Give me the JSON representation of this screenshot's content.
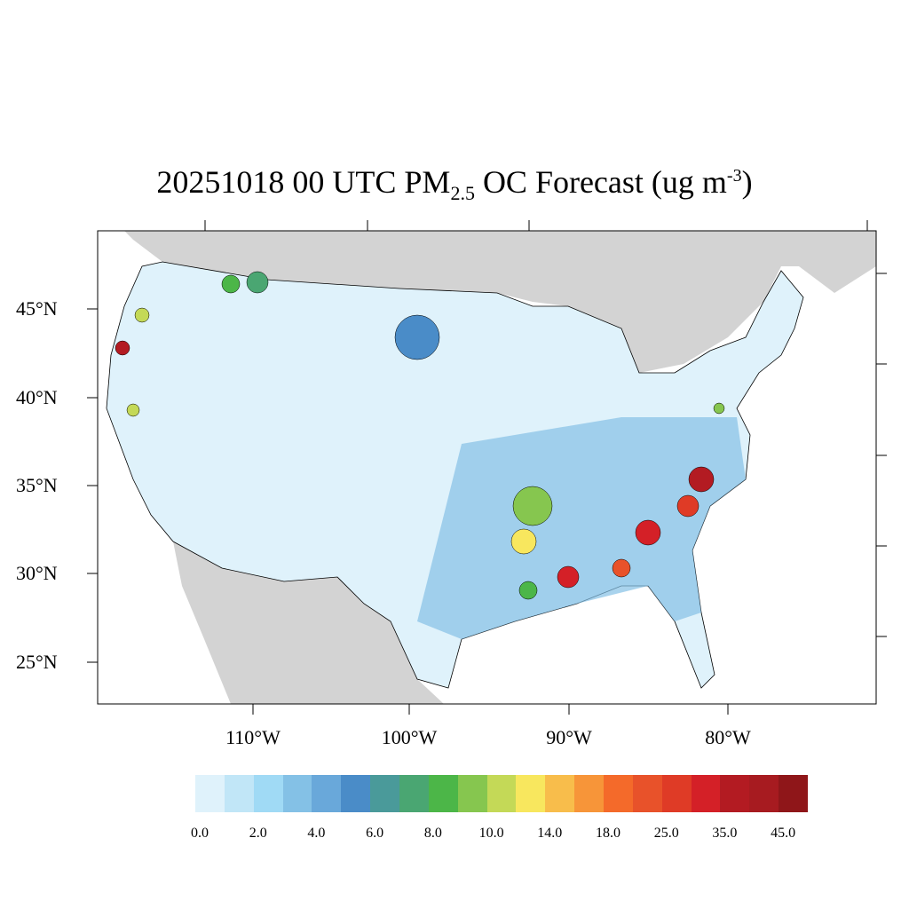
{
  "title": {
    "main": "20251018 00 UTC PM",
    "sub": "2.5",
    "rest": " OC Forecast (ug m",
    "sup": "-3",
    "close": ")"
  },
  "lat_labels": [
    "45°N",
    "40°N",
    "35°N",
    "30°N",
    "25°N"
  ],
  "lon_labels": [
    "110°W",
    "100°W",
    "90°W",
    "80°W"
  ],
  "colorbar": {
    "labels": [
      "0.0",
      "2.0",
      "4.0",
      "6.0",
      "8.0",
      "10.0",
      "14.0",
      "18.0",
      "25.0",
      "35.0",
      "45.0"
    ],
    "colors": [
      "#dff2fb",
      "#c1e6f7",
      "#a0daf5",
      "#84c1e6",
      "#69a8da",
      "#4a8cc8",
      "#4a9a9a",
      "#4aa672",
      "#4cb648",
      "#86c64f",
      "#c4d957",
      "#f8e75e",
      "#f8bd4b",
      "#f79539",
      "#f46a2a",
      "#e8522a",
      "#df3b26",
      "#d42027",
      "#b31b22",
      "#a71b20",
      "#8f1619"
    ]
  },
  "map": {
    "land_color": "#d3d3d3",
    "ocean_color": "#ffffff",
    "us_base_color": "#dff2fb"
  }
}
